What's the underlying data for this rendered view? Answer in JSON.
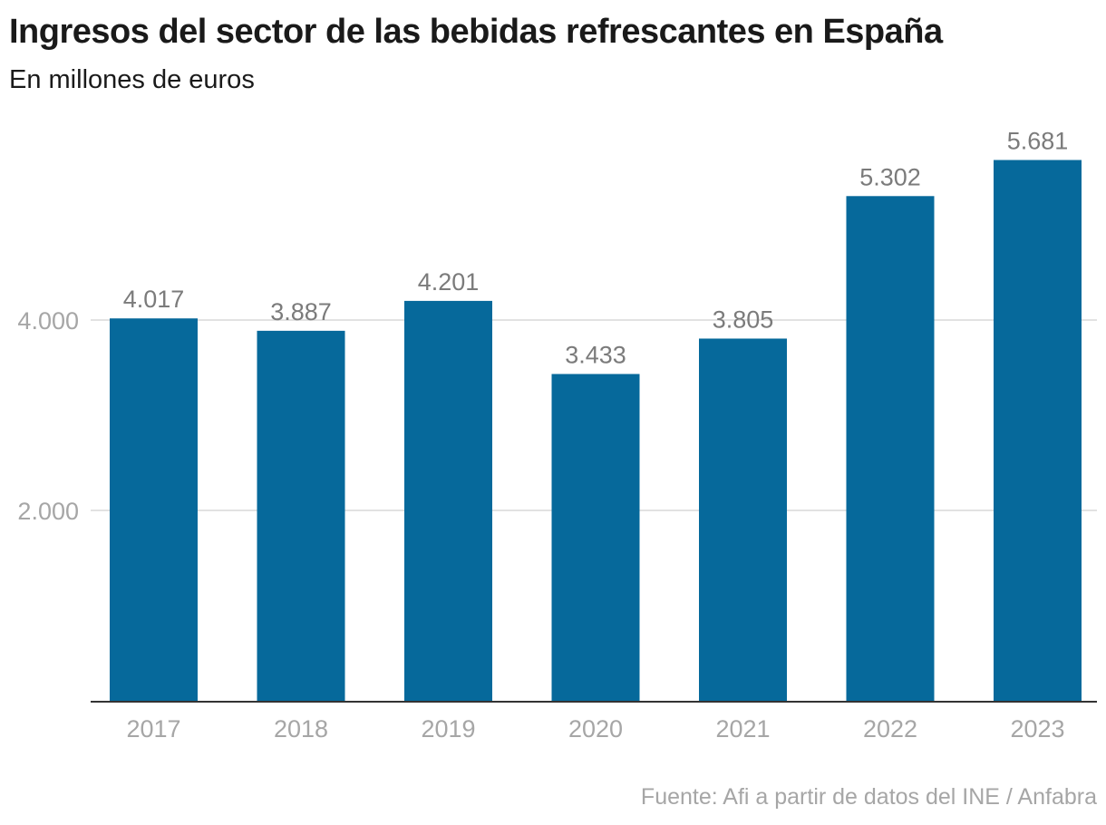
{
  "header": {
    "title": "Ingresos del sector de las bebidas refrescantes en España",
    "subtitle": "En millones de euros"
  },
  "footer": {
    "source": "Fuente: Afi a partir de datos del INE / Anfabra"
  },
  "colors": {
    "bar": "#06699b",
    "grid": "#e2e2e2",
    "axis": "#333333"
  },
  "chart_data": {
    "type": "bar",
    "title": "Ingresos del sector de las bebidas refrescantes en España",
    "subtitle": "En millones de euros",
    "xlabel": "",
    "ylabel": "",
    "categories": [
      "2017",
      "2018",
      "2019",
      "2020",
      "2021",
      "2022",
      "2023"
    ],
    "values": [
      4017,
      3887,
      4201,
      3433,
      3805,
      5302,
      5681
    ],
    "value_labels": [
      "4.017",
      "3.887",
      "4.201",
      "3.433",
      "3.805",
      "5.302",
      "5.681"
    ],
    "yticks": [
      2000,
      4000
    ],
    "ytick_labels": [
      "2.000",
      "4.000"
    ],
    "ylim": [
      0,
      6000
    ],
    "grid": true,
    "legend": null,
    "source": "Fuente: Afi a partir de datos del INE / Anfabra"
  }
}
